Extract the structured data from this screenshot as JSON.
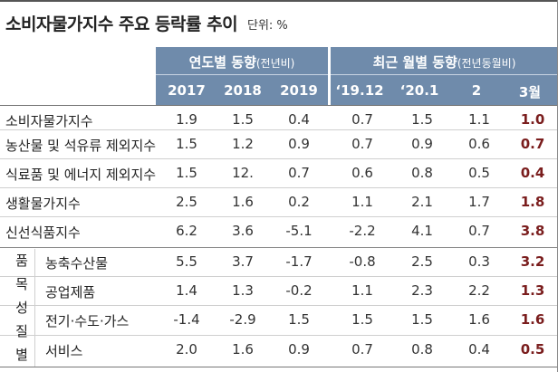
{
  "title": "소비자물가지수 주요 등락률 추이",
  "unit": "단위: %",
  "header": {
    "group1": {
      "title": "연도별 동향",
      "sub": "(전년비)"
    },
    "group2": {
      "title": "최근 월별 동향",
      "sub": "(전년동월비)"
    },
    "columns": [
      "2017",
      "2018",
      "2019",
      "‘19.12",
      "‘20.1",
      "2",
      "3월"
    ]
  },
  "group_label": [
    "품",
    "목",
    "성",
    "질",
    "별"
  ],
  "rows": [
    {
      "label": "소비자물가지수",
      "values": [
        "1.9",
        "1.5",
        "0.4",
        "0.7",
        "1.5",
        "1.1",
        "1.0"
      ]
    },
    {
      "label": "농산물 및 석유류 제외지수",
      "values": [
        "1.5",
        "1.2",
        "0.9",
        "0.7",
        "0.9",
        "0.6",
        "0.7"
      ]
    },
    {
      "label": "식료품 및 에너지 제외지수",
      "values": [
        "1.5",
        "12.",
        "0.7",
        "0.6",
        "0.8",
        "0.5",
        "0.4"
      ]
    },
    {
      "label": "생활물가지수",
      "values": [
        "2.5",
        "1.6",
        "0.2",
        "1.1",
        "2.1",
        "1.7",
        "1.8"
      ]
    },
    {
      "label": "신선식품지수",
      "values": [
        "6.2",
        "3.6",
        "-5.1",
        "-2.2",
        "4.1",
        "0.7",
        "3.8"
      ]
    },
    {
      "label": "농축수산물",
      "values": [
        "5.5",
        "3.7",
        "-1.7",
        "-0.8",
        "2.5",
        "0.3",
        "3.2"
      ]
    },
    {
      "label": "공업제품",
      "values": [
        "1.4",
        "1.3",
        "-0.2",
        "1.1",
        "2.3",
        "2.2",
        "1.3"
      ]
    },
    {
      "label": "전기·수도·가스",
      "values": [
        "-1.4",
        "-2.9",
        "1.5",
        "1.5",
        "1.5",
        "1.6",
        "1.6"
      ]
    },
    {
      "label": "서비스",
      "values": [
        "2.0",
        "1.6",
        "0.9",
        "0.7",
        "0.8",
        "0.4",
        "0.5"
      ]
    }
  ]
}
